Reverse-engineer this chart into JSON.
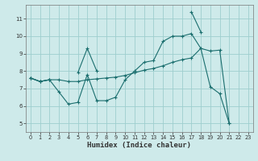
{
  "xlabel": "Humidex (Indice chaleur)",
  "bg_color": "#ceeaea",
  "grid_color": "#9ecece",
  "line_color": "#1a6e6e",
  "line1_y": [
    7.6,
    7.4,
    7.5,
    6.8,
    6.1,
    6.2,
    7.8,
    6.3,
    6.3,
    6.5,
    7.5,
    8.0,
    8.5,
    8.6,
    9.7,
    10.0,
    10.0,
    10.15,
    9.3,
    7.1,
    6.7,
    5.0,
    null,
    null
  ],
  "line2_y": [
    7.6,
    7.4,
    7.5,
    null,
    null,
    7.9,
    9.3,
    8.0,
    null,
    null,
    null,
    null,
    null,
    null,
    null,
    null,
    null,
    11.4,
    10.25,
    null,
    null,
    null,
    null,
    null
  ],
  "line3_y": [
    7.6,
    7.4,
    7.5,
    7.5,
    7.4,
    7.4,
    7.5,
    7.55,
    7.6,
    7.65,
    7.75,
    7.9,
    8.05,
    8.15,
    8.3,
    8.5,
    8.65,
    8.75,
    9.3,
    9.15,
    9.2,
    5.0,
    null,
    null
  ],
  "ylim": [
    4.5,
    11.8
  ],
  "xlim": [
    -0.5,
    23.5
  ],
  "yticks": [
    5,
    6,
    7,
    8,
    9,
    10,
    11
  ],
  "xticks": [
    0,
    1,
    2,
    3,
    4,
    5,
    6,
    7,
    8,
    9,
    10,
    11,
    12,
    13,
    14,
    15,
    16,
    17,
    18,
    19,
    20,
    21,
    22,
    23
  ]
}
